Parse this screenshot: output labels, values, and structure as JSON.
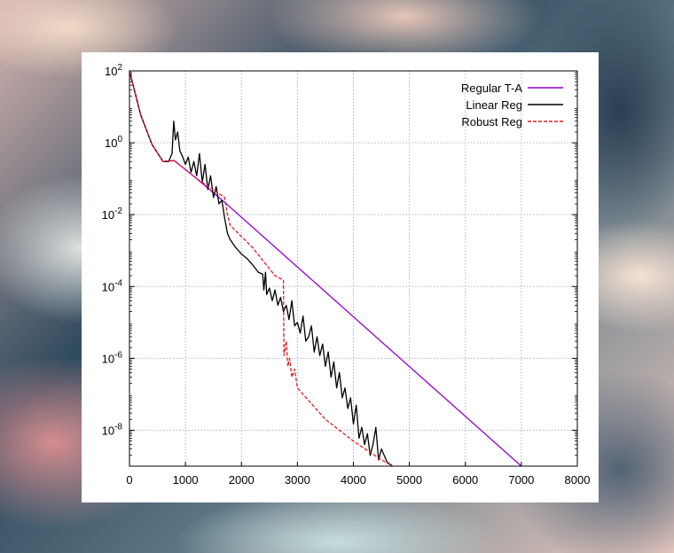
{
  "chart_data": {
    "type": "line",
    "title": "",
    "xlabel": "",
    "ylabel": "",
    "xlim": [
      0,
      8000
    ],
    "ylim_exponent": [
      -9,
      2
    ],
    "yscale": "log",
    "grid": true,
    "legend_position": "top-right",
    "x_ticks": [
      "0",
      "1000",
      "2000",
      "3000",
      "4000",
      "5000",
      "6000",
      "7000",
      "8000"
    ],
    "y_ticks": [
      {
        "base": "10",
        "exp": "2",
        "value_exp": 2
      },
      {
        "base": "10",
        "exp": "0",
        "value_exp": 0
      },
      {
        "base": "10",
        "exp": "-2",
        "value_exp": -2
      },
      {
        "base": "10",
        "exp": "-4",
        "value_exp": -4
      },
      {
        "base": "10",
        "exp": "-6",
        "value_exp": -6
      },
      {
        "base": "10",
        "exp": "-8",
        "value_exp": -8
      }
    ],
    "series": [
      {
        "name": "Regular T-A",
        "color": "#9400d3",
        "dash": "solid",
        "points": [
          [
            0,
            120
          ],
          [
            200,
            6
          ],
          [
            400,
            0.9
          ],
          [
            600,
            0.3
          ],
          [
            800,
            0.32
          ],
          [
            1200,
            0.1
          ],
          [
            1700,
            0.022
          ],
          [
            7000,
            1e-09
          ]
        ]
      },
      {
        "name": "Linear Reg",
        "color": "#000000",
        "dash": "solid",
        "points": [
          [
            0,
            120
          ],
          [
            200,
            6
          ],
          [
            400,
            0.9
          ],
          [
            600,
            0.3
          ],
          [
            700,
            0.3
          ],
          [
            760,
            0.5
          ],
          [
            790,
            4
          ],
          [
            820,
            1.2
          ],
          [
            860,
            2
          ],
          [
            900,
            0.6
          ],
          [
            950,
            0.4
          ],
          [
            1000,
            0.25
          ],
          [
            1050,
            0.4
          ],
          [
            1100,
            0.15
          ],
          [
            1150,
            0.3
          ],
          [
            1200,
            0.12
          ],
          [
            1250,
            0.5
          ],
          [
            1300,
            0.08
          ],
          [
            1350,
            0.25
          ],
          [
            1400,
            0.05
          ],
          [
            1450,
            0.12
          ],
          [
            1500,
            0.03
          ],
          [
            1550,
            0.06
          ],
          [
            1600,
            0.02
          ],
          [
            1650,
            0.025
          ],
          [
            1700,
            0.008
          ],
          [
            1750,
            0.003
          ],
          [
            1800,
            0.002
          ],
          [
            1900,
            0.0012
          ],
          [
            2000,
            0.0008
          ],
          [
            2100,
            0.0006
          ],
          [
            2200,
            0.0004
          ],
          [
            2300,
            0.00025
          ],
          [
            2380,
            0.00022
          ],
          [
            2400,
            8e-05
          ],
          [
            2430,
            0.00025
          ],
          [
            2450,
            6e-05
          ],
          [
            2500,
            9e-05
          ],
          [
            2550,
            4e-05
          ],
          [
            2600,
            8e-05
          ],
          [
            2650,
            3e-05
          ],
          [
            2700,
            5e-05
          ],
          [
            2750,
            2e-05
          ],
          [
            2800,
            3e-05
          ],
          [
            2850,
            1.2e-05
          ],
          [
            2900,
            4e-05
          ],
          [
            2950,
            8e-06
          ],
          [
            3000,
            1e-05
          ],
          [
            3050,
            5e-06
          ],
          [
            3100,
            1.5e-05
          ],
          [
            3150,
            3e-06
          ],
          [
            3200,
            4e-06
          ],
          [
            3250,
            8e-06
          ],
          [
            3300,
            1.5e-06
          ],
          [
            3350,
            4e-06
          ],
          [
            3400,
            1.2e-06
          ],
          [
            3450,
            2.5e-06
          ],
          [
            3500,
            6e-07
          ],
          [
            3550,
            1.5e-06
          ],
          [
            3600,
            3e-07
          ],
          [
            3650,
            8e-07
          ],
          [
            3700,
            1.5e-07
          ],
          [
            3750,
            4e-07
          ],
          [
            3800,
            8e-08
          ],
          [
            3850,
            1.5e-07
          ],
          [
            3900,
            4e-08
          ],
          [
            3950,
            8e-08
          ],
          [
            4000,
            1.5e-08
          ],
          [
            4050,
            5e-08
          ],
          [
            4100,
            6e-09
          ],
          [
            4150,
            1.2e-08
          ],
          [
            4200,
            4e-09
          ],
          [
            4250,
            8e-09
          ],
          [
            4300,
            2e-09
          ],
          [
            4350,
            4e-09
          ],
          [
            4400,
            1.2e-08
          ],
          [
            4450,
            1.5e-09
          ],
          [
            4500,
            3e-09
          ],
          [
            4550,
            2e-09
          ],
          [
            4600,
            1.3e-09
          ],
          [
            4700,
            1e-09
          ]
        ]
      },
      {
        "name": "Robust Reg",
        "color": "#e41a1c",
        "dash": "dashed",
        "points": [
          [
            0,
            120
          ],
          [
            200,
            6
          ],
          [
            400,
            0.9
          ],
          [
            600,
            0.3
          ],
          [
            800,
            0.32
          ],
          [
            1200,
            0.1
          ],
          [
            1700,
            0.03
          ],
          [
            1750,
            0.01
          ],
          [
            1800,
            0.005
          ],
          [
            2200,
            0.0012
          ],
          [
            2600,
            0.0002
          ],
          [
            2750,
            0.00015
          ],
          [
            2760,
            1.2e-06
          ],
          [
            2800,
            3e-06
          ],
          [
            2830,
            6e-07
          ],
          [
            2860,
            1e-06
          ],
          [
            2900,
            3e-07
          ],
          [
            2950,
            5e-07
          ],
          [
            3000,
            1.5e-07
          ],
          [
            3100,
            1e-07
          ],
          [
            3500,
            2e-08
          ],
          [
            4000,
            5e-09
          ],
          [
            4500,
            1.5e-09
          ],
          [
            4700,
            1e-09
          ]
        ]
      }
    ]
  }
}
